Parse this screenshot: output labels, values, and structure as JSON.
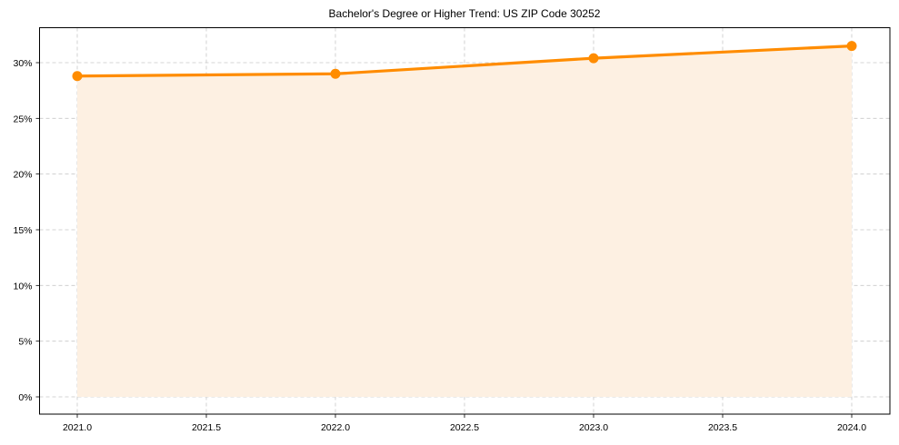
{
  "chart_data": {
    "type": "line",
    "title": "Bachelor's Degree or Higher Trend: US ZIP Code 30252",
    "xlabel": "",
    "ylabel": "",
    "x": [
      2021,
      2022,
      2023,
      2024
    ],
    "series": [
      {
        "name": "Bachelor's Degree or Higher",
        "values": [
          28.8,
          29.0,
          30.4,
          31.5
        ],
        "color": "#ff8c00",
        "fill": true,
        "fill_color": "#fdf0e2",
        "marker": "circle"
      }
    ],
    "xlim": [
      2020.85,
      2024.15
    ],
    "ylim": [
      -1.5,
      33.2
    ],
    "xticks": [
      2021.0,
      2021.5,
      2022.0,
      2022.5,
      2023.0,
      2023.5,
      2024.0
    ],
    "xtick_labels": [
      "2021.0",
      "2021.5",
      "2022.0",
      "2022.5",
      "2023.0",
      "2023.5",
      "2024.0"
    ],
    "yticks": [
      0,
      5,
      10,
      15,
      20,
      25,
      30
    ],
    "ytick_labels": [
      "0%",
      "5%",
      "10%",
      "15%",
      "20%",
      "25%",
      "30%"
    ],
    "grid": true,
    "grid_style": "dashed",
    "legend": false
  }
}
